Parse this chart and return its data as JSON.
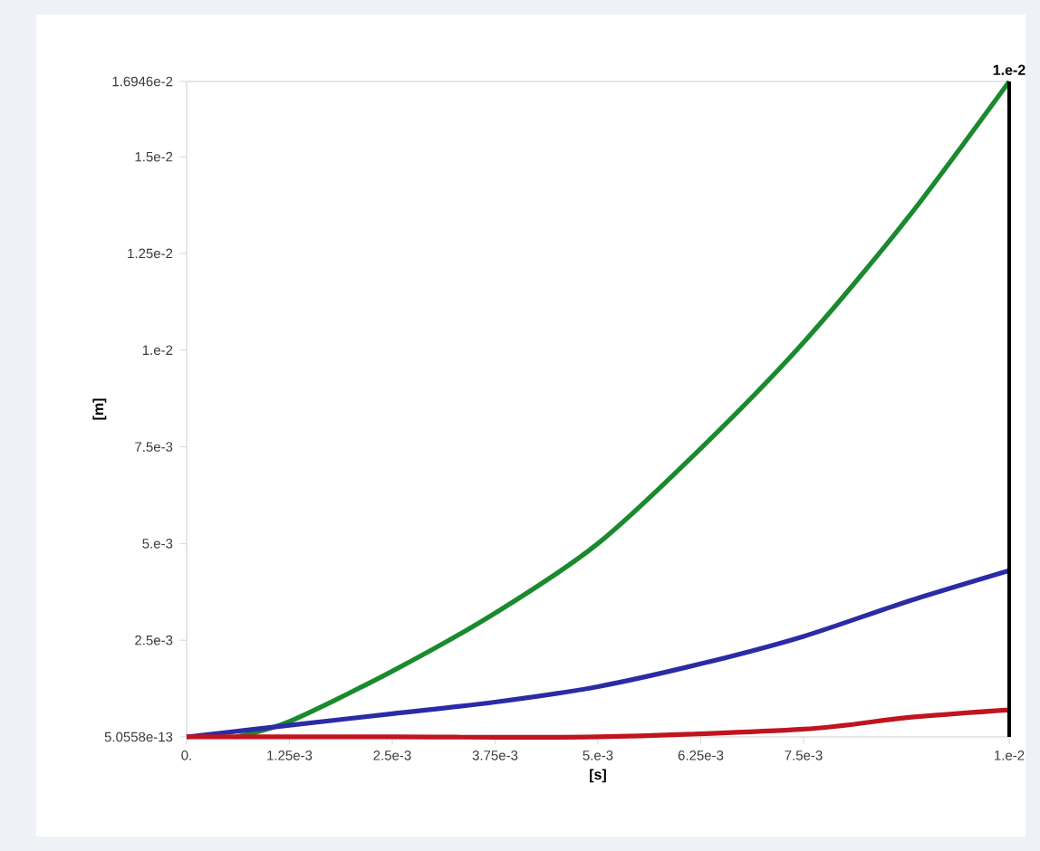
{
  "chart_data": {
    "type": "line",
    "xlabel": "[s]",
    "ylabel": "[m]",
    "xlim": [
      0,
      0.01
    ],
    "ylim": [
      5.0558e-13,
      0.016946
    ],
    "xticks": [
      {
        "value": 0,
        "label": "0."
      },
      {
        "value": 0.00125,
        "label": "1.25e-3"
      },
      {
        "value": 0.0025,
        "label": "2.5e-3"
      },
      {
        "value": 0.00375,
        "label": "3.75e-3"
      },
      {
        "value": 0.005,
        "label": "5.e-3"
      },
      {
        "value": 0.00625,
        "label": "6.25e-3"
      },
      {
        "value": 0.0075,
        "label": "7.5e-3"
      },
      {
        "value": 0.01,
        "label": "1.e-2"
      }
    ],
    "yticks": [
      {
        "value": 5.0558e-13,
        "label": "5.0558e-13"
      },
      {
        "value": 0.0025,
        "label": "2.5e-3"
      },
      {
        "value": 0.005,
        "label": "5.e-3"
      },
      {
        "value": 0.0075,
        "label": "7.5e-3"
      },
      {
        "value": 0.01,
        "label": "1.e-2"
      },
      {
        "value": 0.0125,
        "label": "1.25e-2"
      },
      {
        "value": 0.015,
        "label": "1.5e-2"
      },
      {
        "value": 0.016946,
        "label": "1.6946e-2"
      }
    ],
    "grid": false,
    "line_style": "solid",
    "series": [
      {
        "color": "#1a8a2e",
        "x": [
          0.0006,
          0.00125,
          0.0025,
          0.00375,
          0.005,
          0.00627,
          0.0075,
          0.00876,
          0.01
        ],
        "values": [
          5.0558e-13,
          0.0004,
          0.0017,
          0.0032,
          0.005,
          0.0075,
          0.0102,
          0.0134,
          0.016946
        ]
      },
      {
        "color": "#2b2ba6",
        "x": [
          0,
          0.00125,
          0.0025,
          0.00375,
          0.005,
          0.00627,
          0.0075,
          0.00876,
          0.01
        ],
        "values": [
          5.0558e-13,
          0.0003,
          0.0006,
          0.0009,
          0.0013,
          0.0019,
          0.0026,
          0.0035,
          0.0043
        ]
      },
      {
        "color": "#c0141e",
        "x": [
          0,
          0.0025,
          0.005,
          0.0075,
          0.00876,
          0.01
        ],
        "values": [
          5.0558e-13,
          5.0558e-13,
          5.0558e-13,
          0.0002,
          0.0005,
          0.0007
        ]
      }
    ],
    "ref_lines": [
      {
        "axis": "x",
        "value": 0.01,
        "label": "1.e-2",
        "color": "#000000"
      }
    ]
  }
}
